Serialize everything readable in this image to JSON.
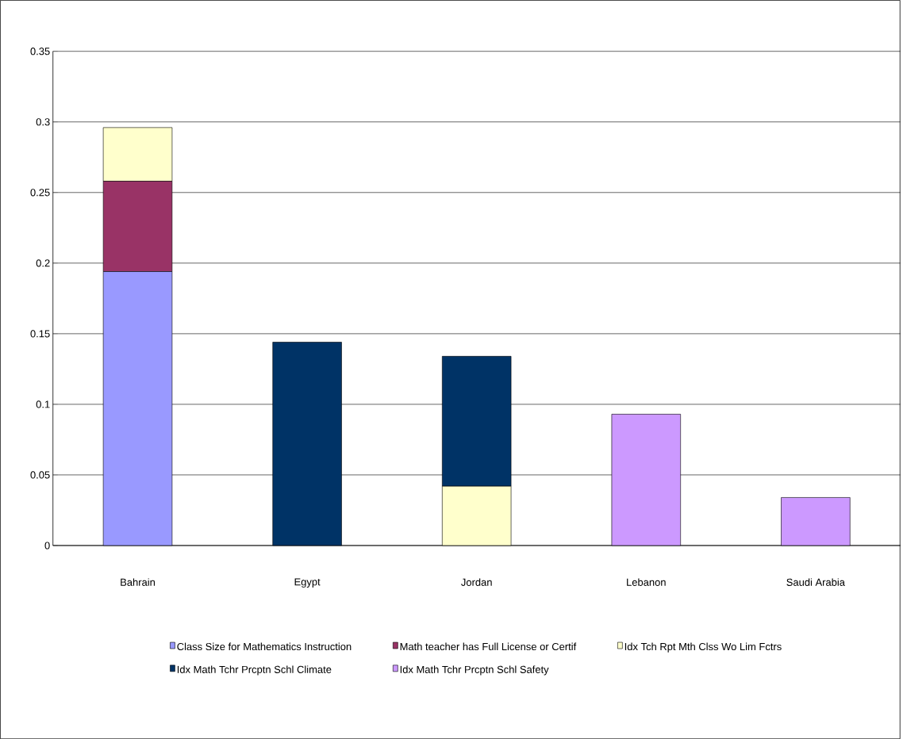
{
  "chart_data": {
    "type": "bar",
    "stacked": true,
    "categories": [
      "Bahrain",
      "Egypt",
      "Jordan",
      "Lebanon",
      "Saudi Arabia"
    ],
    "series": [
      {
        "name": "Class Size for Mathematics Instruction",
        "color": "#9999ff",
        "values": [
          0.194,
          null,
          null,
          null,
          null
        ]
      },
      {
        "name": "Math teacher has Full License or Certif",
        "color": "#993366",
        "values": [
          0.064,
          null,
          null,
          null,
          null
        ]
      },
      {
        "name": "Idx Tch Rpt Mth Clss Wo Lim Fctrs",
        "color": "#ffffcc",
        "values": [
          0.038,
          null,
          0.042,
          null,
          null
        ]
      },
      {
        "name": "Idx Math Tchr Prcptn Schl Climate",
        "color": "#003366",
        "values": [
          null,
          0.144,
          0.092,
          null,
          null
        ]
      },
      {
        "name": "Idx Math Tchr Prcptn Schl Safety",
        "color": "#cc99ff",
        "values": [
          null,
          null,
          null,
          0.093,
          0.034
        ]
      }
    ],
    "ylim": [
      0,
      0.35
    ],
    "yticks": [
      0,
      0.05,
      0.1,
      0.15,
      0.2,
      0.25,
      0.3,
      0.35
    ],
    "grid": "y",
    "legend": "bottom"
  }
}
